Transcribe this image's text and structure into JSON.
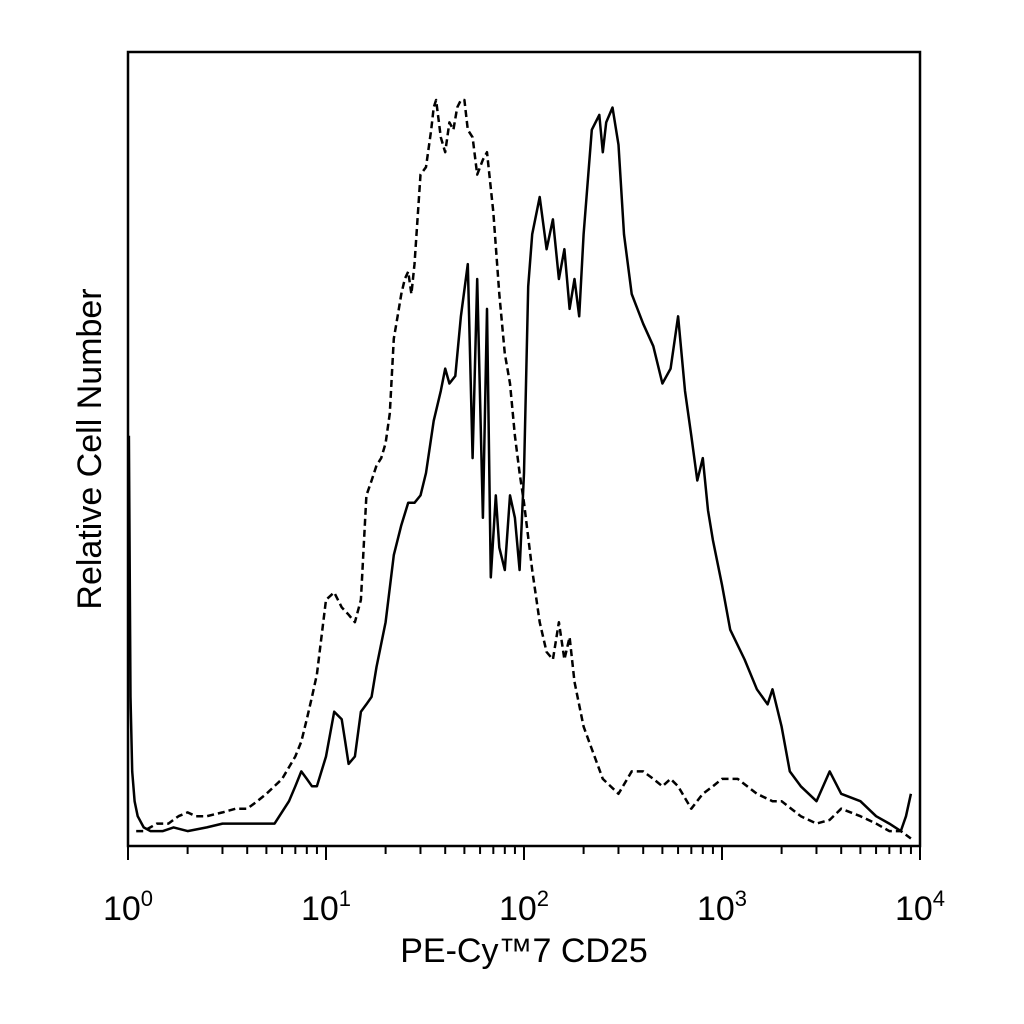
{
  "chart_data": {
    "type": "line",
    "xlabel": "PE-Cy™7 CD25",
    "ylabel": "Relative Cell Number",
    "x_scale": "log",
    "xlim": [
      1,
      10000
    ],
    "ylim": [
      0,
      1
    ],
    "grid": false,
    "legend": "none",
    "x_ticks": [
      {
        "base": "10",
        "exp": "0"
      },
      {
        "base": "10",
        "exp": "1"
      },
      {
        "base": "10",
        "exp": "2"
      },
      {
        "base": "10",
        "exp": "3"
      },
      {
        "base": "10",
        "exp": "4"
      }
    ],
    "series": [
      {
        "style": "solid",
        "color": "#000000",
        "x": [
          1.01,
          1.03,
          1.05,
          1.08,
          1.12,
          1.2,
          1.3,
          1.5,
          1.7,
          2.0,
          2.5,
          3.0,
          3.5,
          4.5,
          5.5,
          6.5,
          7.0,
          7.5,
          8.0,
          8.5,
          9.0,
          10.0,
          11.0,
          12.0,
          12.5,
          13.0,
          14.0,
          15.0,
          16.0,
          17.0,
          18.0,
          20.0,
          22.0,
          24.0,
          26.0,
          28.0,
          30.0,
          32.0,
          35.0,
          38.0,
          40.0,
          42.0,
          45.0,
          48.0,
          52.0,
          55.0,
          58.0,
          62.0,
          65.0,
          68.0,
          72.0,
          75.0,
          80.0,
          85.0,
          90.0,
          95.0,
          100.0,
          105.0,
          110.0,
          120.0,
          130.0,
          140.0,
          150.0,
          160.0,
          170.0,
          180.0,
          190.0,
          200.0,
          220.0,
          240.0,
          250.0,
          260.0,
          280.0,
          300.0,
          320.0,
          350.0,
          400.0,
          450.0,
          500.0,
          550.0,
          600.0,
          650.0,
          700.0,
          750.0,
          800.0,
          850.0,
          900.0,
          1000.0,
          1100.0,
          1300.0,
          1500.0,
          1700.0,
          1800.0,
          2000.0,
          2200.0,
          2500.0,
          3000.0,
          3500.0,
          4000.0,
          5000.0,
          6000.0,
          7000.0,
          8000.0,
          8500.0,
          9000.0
        ],
        "y": [
          0.55,
          0.2,
          0.1,
          0.06,
          0.04,
          0.025,
          0.02,
          0.02,
          0.025,
          0.02,
          0.025,
          0.03,
          0.03,
          0.03,
          0.03,
          0.06,
          0.08,
          0.1,
          0.09,
          0.08,
          0.08,
          0.12,
          0.18,
          0.17,
          0.14,
          0.11,
          0.12,
          0.18,
          0.19,
          0.2,
          0.24,
          0.3,
          0.39,
          0.43,
          0.46,
          0.46,
          0.47,
          0.5,
          0.57,
          0.61,
          0.64,
          0.62,
          0.63,
          0.71,
          0.78,
          0.52,
          0.76,
          0.44,
          0.72,
          0.36,
          0.47,
          0.4,
          0.37,
          0.47,
          0.44,
          0.37,
          0.5,
          0.75,
          0.82,
          0.87,
          0.8,
          0.84,
          0.76,
          0.8,
          0.72,
          0.76,
          0.71,
          0.82,
          0.96,
          0.98,
          0.93,
          0.97,
          0.99,
          0.94,
          0.82,
          0.74,
          0.7,
          0.67,
          0.62,
          0.64,
          0.71,
          0.61,
          0.55,
          0.49,
          0.52,
          0.45,
          0.41,
          0.35,
          0.29,
          0.25,
          0.21,
          0.19,
          0.21,
          0.16,
          0.1,
          0.08,
          0.06,
          0.1,
          0.07,
          0.06,
          0.04,
          0.03,
          0.02,
          0.04,
          0.07
        ]
      },
      {
        "style": "dashed",
        "color": "#000000",
        "x": [
          1.1,
          1.2,
          1.4,
          1.6,
          1.8,
          2.0,
          2.2,
          2.5,
          3.0,
          3.5,
          4.0,
          4.5,
          5.0,
          6.0,
          7.0,
          7.5,
          8.0,
          8.5,
          9.0,
          10.0,
          11.0,
          12.0,
          13.0,
          14.0,
          15.0,
          16.0,
          17.0,
          18.0,
          19.0,
          20.0,
          21.0,
          22.0,
          23.0,
          24.0,
          25.0,
          26.0,
          27.0,
          28.0,
          30.0,
          32.0,
          34.0,
          35.0,
          36.0,
          38.0,
          40.0,
          42.0,
          44.0,
          46.0,
          48.0,
          50.0,
          52.0,
          55.0,
          58.0,
          62.0,
          65.0,
          70.0,
          75.0,
          80.0,
          85.0,
          90.0,
          95.0,
          100.0,
          110.0,
          120.0,
          130.0,
          140.0,
          150.0,
          160.0,
          170.0,
          180.0,
          200.0,
          220.0,
          250.0,
          300.0,
          350.0,
          400.0,
          450.0,
          500.0,
          550.0,
          600.0,
          700.0,
          800.0,
          900.0,
          1000.0,
          1200.0,
          1500.0,
          1800.0,
          2000.0,
          2500.0,
          3000.0,
          3500.0,
          4000.0,
          5000.0,
          6000.0,
          7000.0,
          8000.0,
          9000.0
        ],
        "y": [
          0.02,
          0.02,
          0.03,
          0.03,
          0.04,
          0.045,
          0.04,
          0.04,
          0.045,
          0.05,
          0.05,
          0.06,
          0.07,
          0.09,
          0.12,
          0.14,
          0.17,
          0.2,
          0.23,
          0.33,
          0.34,
          0.32,
          0.31,
          0.3,
          0.33,
          0.47,
          0.49,
          0.51,
          0.52,
          0.54,
          0.58,
          0.68,
          0.71,
          0.74,
          0.76,
          0.77,
          0.74,
          0.78,
          0.9,
          0.91,
          0.96,
          0.99,
          1.0,
          0.95,
          0.93,
          0.97,
          0.96,
          0.99,
          1.0,
          1.0,
          0.96,
          0.95,
          0.9,
          0.92,
          0.93,
          0.85,
          0.74,
          0.66,
          0.62,
          0.55,
          0.5,
          0.46,
          0.37,
          0.3,
          0.26,
          0.25,
          0.3,
          0.25,
          0.28,
          0.22,
          0.16,
          0.13,
          0.09,
          0.07,
          0.1,
          0.1,
          0.09,
          0.08,
          0.09,
          0.08,
          0.05,
          0.07,
          0.08,
          0.09,
          0.09,
          0.07,
          0.06,
          0.06,
          0.04,
          0.03,
          0.035,
          0.05,
          0.04,
          0.03,
          0.02,
          0.02,
          0.01
        ]
      }
    ]
  }
}
